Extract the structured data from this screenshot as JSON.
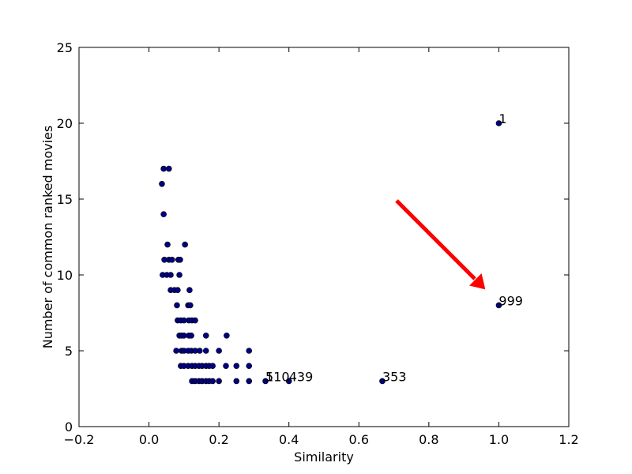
{
  "chart_data": {
    "type": "scatter",
    "xlabel": "Similarity",
    "ylabel": "Number of common ranked movies",
    "color": "#000080",
    "x": [
      0.037,
      0.042,
      0.057,
      0.042,
      0.053,
      0.103,
      0.044,
      0.057,
      0.066,
      0.084,
      0.089,
      0.039,
      0.051,
      0.062,
      0.087,
      0.062,
      0.073,
      0.082,
      0.116,
      0.08,
      0.112,
      0.118,
      0.082,
      0.091,
      0.1,
      0.114,
      0.123,
      0.132,
      0.087,
      0.093,
      0.1,
      0.114,
      0.121,
      0.163,
      0.222,
      0.078,
      0.093,
      0.1,
      0.112,
      0.121,
      0.132,
      0.145,
      0.163,
      0.2,
      0.286,
      0.091,
      0.1,
      0.112,
      0.123,
      0.132,
      0.143,
      0.152,
      0.163,
      0.172,
      0.182,
      0.22,
      0.25,
      0.286,
      0.123,
      0.132,
      0.143,
      0.152,
      0.163,
      0.172,
      0.182,
      0.2,
      0.25,
      0.286,
      0.333,
      0.4,
      0.667,
      1.0,
      1.0
    ],
    "y": [
      16,
      17,
      17,
      14,
      12,
      12,
      11,
      11,
      11,
      11,
      11,
      10,
      10,
      10,
      10,
      9,
      9,
      9,
      9,
      8,
      8,
      8,
      7,
      7,
      7,
      7,
      7,
      7,
      6,
      6,
      6,
      6,
      6,
      6,
      6,
      5,
      5,
      5,
      5,
      5,
      5,
      5,
      5,
      5,
      5,
      4,
      4,
      4,
      4,
      4,
      4,
      4,
      4,
      4,
      4,
      4,
      4,
      4,
      3,
      3,
      3,
      3,
      3,
      3,
      3,
      3,
      3,
      3,
      3,
      3,
      3,
      20,
      8
    ],
    "annotations": [
      {
        "text": "1",
        "x": 1.0,
        "y": 20
      },
      {
        "text": "999",
        "x": 1.0,
        "y": 8
      },
      {
        "text": "353",
        "x": 0.667,
        "y": 3
      },
      {
        "text": "5",
        "x": 0.333,
        "y": 3
      },
      {
        "text": "110",
        "x": 0.333,
        "y": 3
      },
      {
        "text": "439",
        "x": 0.4,
        "y": 3
      }
    ],
    "xlim": [
      -0.2,
      1.2
    ],
    "xticks": [
      {
        "value": -0.2,
        "label": "−0.2"
      },
      {
        "value": 0,
        "label": "0.0"
      },
      0.2,
      0.4,
      0.6,
      0.8,
      {
        "value": 1,
        "label": "1.0"
      },
      1.2
    ],
    "ylim": [
      0,
      25
    ],
    "yticks": [
      0,
      5,
      10,
      15,
      20,
      25
    ]
  }
}
